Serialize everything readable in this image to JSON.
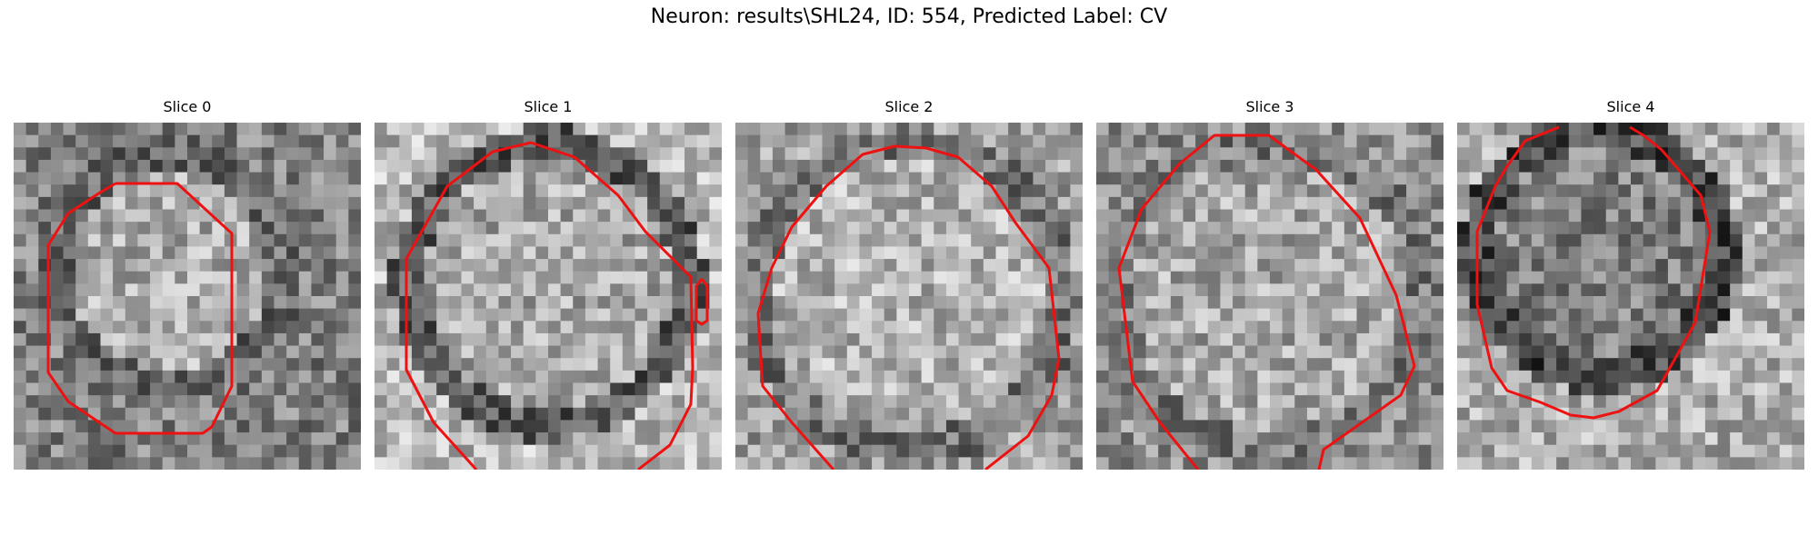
{
  "figure": {
    "title": "Neuron: results\\SHL24, ID: 554, Predicted Label: CV",
    "contour_color": "#ee1111"
  },
  "slices": [
    {
      "title": "Slice 0"
    },
    {
      "title": "Slice 1"
    },
    {
      "title": "Slice 2"
    },
    {
      "title": "Slice 3"
    },
    {
      "title": "Slice 4"
    }
  ]
}
